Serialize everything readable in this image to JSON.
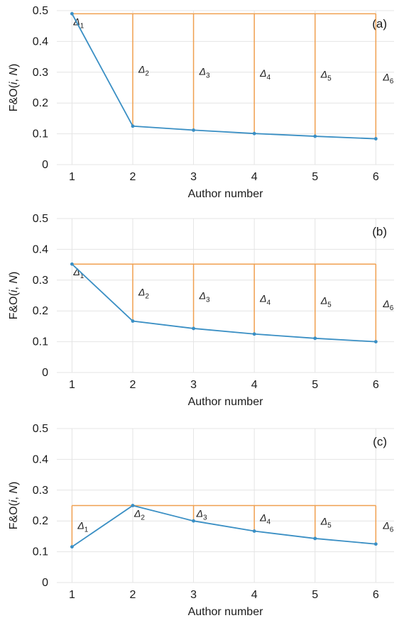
{
  "chart_data": [
    {
      "type": "line",
      "panel_label": "(a)",
      "xlabel": "Author number",
      "ylabel": "F&O(i, N)",
      "x": [
        1,
        2,
        3,
        4,
        5,
        6
      ],
      "xticks": [
        "1",
        "2",
        "3",
        "4",
        "5",
        "6"
      ],
      "ylim": [
        0,
        0.5
      ],
      "yticks": [
        "0",
        "0.1",
        "0.2",
        "0.3",
        "0.4",
        "0.5"
      ],
      "grid": true,
      "series": [
        {
          "values": [
            0.49,
            0.125,
            0.112,
            0.101,
            0.092,
            0.084
          ],
          "color": "#3a8fc4"
        }
      ],
      "threshold_color": "#f0a050",
      "delta_labels": [
        "Δ1",
        "Δ2",
        "Δ3",
        "Δ4",
        "Δ5",
        "Δ6"
      ]
    },
    {
      "type": "line",
      "panel_label": "(b)",
      "xlabel": "Author number",
      "ylabel": "F&O(i, N)",
      "x": [
        1,
        2,
        3,
        4,
        5,
        6
      ],
      "xticks": [
        "1",
        "2",
        "3",
        "4",
        "5",
        "6"
      ],
      "ylim": [
        0,
        0.5
      ],
      "yticks": [
        "0",
        "0.1",
        "0.2",
        "0.3",
        "0.4",
        "0.5"
      ],
      "grid": true,
      "series": [
        {
          "values": [
            0.352,
            0.167,
            0.143,
            0.125,
            0.111,
            0.1
          ],
          "color": "#3a8fc4"
        }
      ],
      "threshold_color": "#f0a050",
      "delta_labels": [
        "Δ1",
        "Δ2",
        "Δ3",
        "Δ4",
        "Δ5",
        "Δ6"
      ]
    },
    {
      "type": "line",
      "panel_label": "(c)",
      "xlabel": "Author number",
      "ylabel": "F&O(i, N)",
      "x": [
        1,
        2,
        3,
        4,
        5,
        6
      ],
      "xticks": [
        "1",
        "2",
        "3",
        "4",
        "5",
        "6"
      ],
      "ylim": [
        0,
        0.5
      ],
      "yticks": [
        "0",
        "0.1",
        "0.2",
        "0.3",
        "0.4",
        "0.5"
      ],
      "grid": true,
      "series": [
        {
          "values": [
            0.116,
            0.25,
            0.2,
            0.167,
            0.143,
            0.125
          ],
          "color": "#3a8fc4"
        }
      ],
      "threshold_color": "#f0a050",
      "delta_labels": [
        "Δ1",
        "Δ2",
        "Δ3",
        "Δ4",
        "Δ5",
        "Δ6"
      ]
    }
  ]
}
